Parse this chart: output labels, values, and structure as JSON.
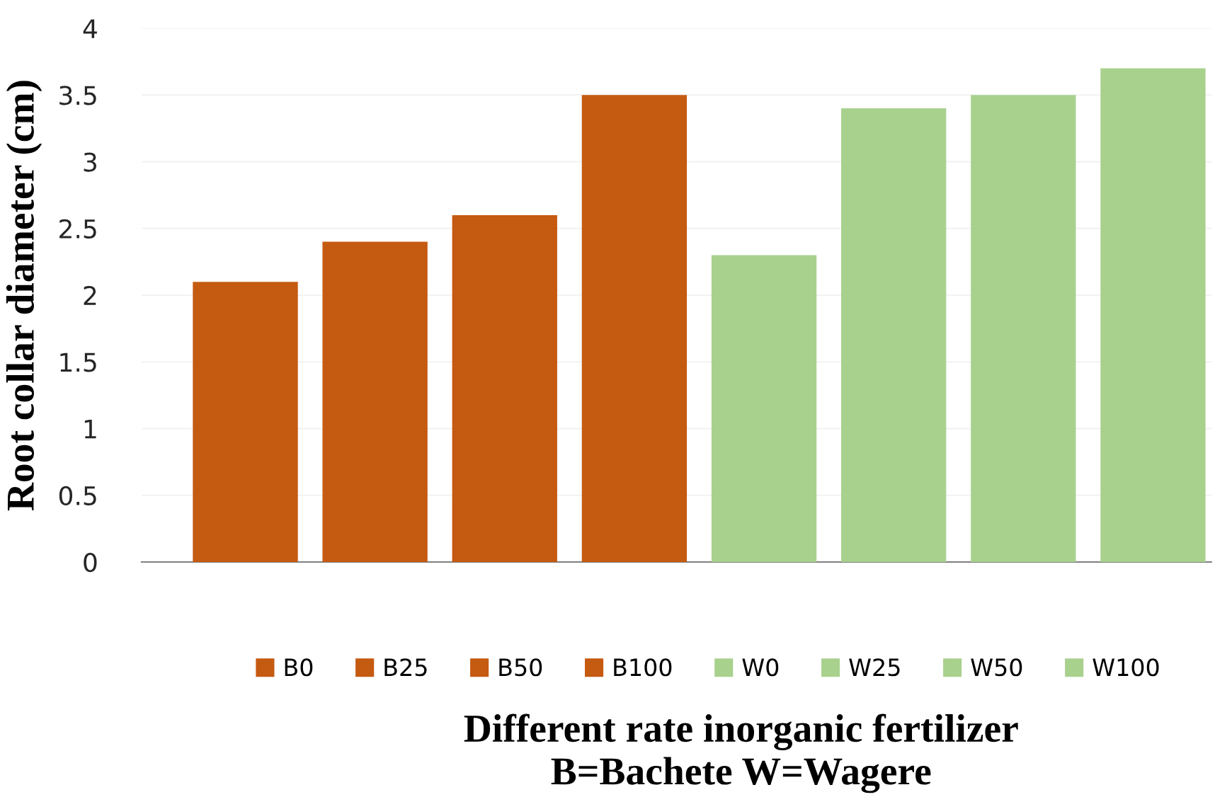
{
  "chart_data": {
    "type": "bar",
    "categories": [
      null
    ],
    "ylabel": "Root collar diameter (cm)",
    "xlabel": "Different rate inorganic fertilizer\nB=Bachete W=Wagere",
    "series": [
      {
        "name": "B0",
        "color": "#c55a11",
        "values": [
          2.1
        ]
      },
      {
        "name": "B25",
        "color": "#c55a11",
        "values": [
          2.4
        ]
      },
      {
        "name": "B50",
        "color": "#c55a11",
        "values": [
          2.6
        ]
      },
      {
        "name": "B100",
        "color": "#c55a11",
        "values": [
          3.5
        ]
      },
      {
        "name": "W0",
        "color": "#a9d18e",
        "values": [
          2.3
        ]
      },
      {
        "name": "W25",
        "color": "#a9d18e",
        "values": [
          3.4
        ]
      },
      {
        "name": "W50",
        "color": "#a9d18e",
        "values": [
          3.5
        ]
      },
      {
        "name": "W100",
        "color": "#a9d18e",
        "values": [
          3.7
        ]
      }
    ],
    "ylim": [
      0,
      4
    ],
    "yticks": [
      0,
      0.5,
      1,
      1.5,
      2,
      2.5,
      3,
      3.5,
      4
    ],
    "grid": "y",
    "legend": "bottom"
  }
}
